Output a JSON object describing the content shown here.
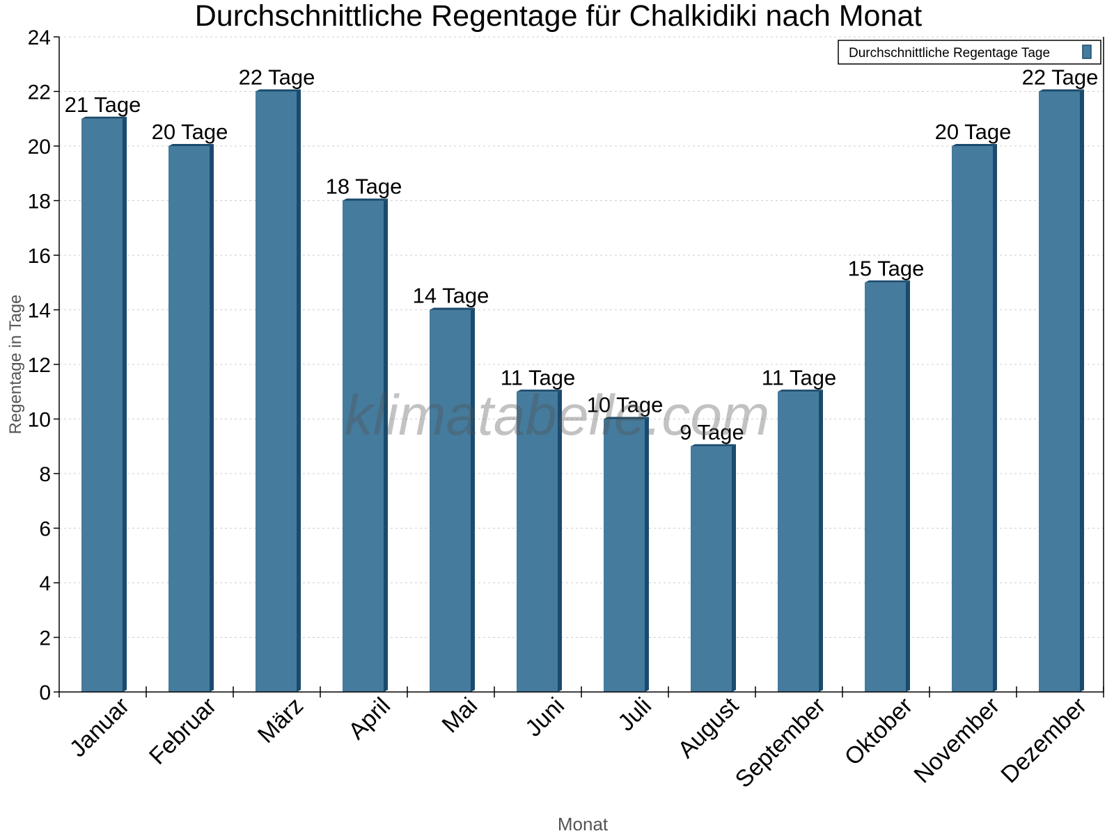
{
  "chart_data": {
    "type": "bar",
    "title": "Durchschnittliche Regentage für Chalkidiki nach Monat",
    "xlabel": "Monat",
    "ylabel": "Regentage in Tage",
    "categories": [
      "Januar",
      "Februar",
      "März",
      "April",
      "Mai",
      "Juni",
      "Juli",
      "August",
      "September",
      "Oktober",
      "November",
      "Dezember"
    ],
    "series": [
      {
        "name": "Durchschnittliche Regentage Tage",
        "values": [
          21,
          20,
          22,
          18,
          14,
          11,
          10,
          9,
          11,
          15,
          20,
          22
        ],
        "color": "#457b9d",
        "side_color": "#1a4b6e"
      }
    ],
    "data_labels": [
      "21 Tage",
      "20 Tage",
      "22 Tage",
      "18 Tage",
      "14 Tage",
      "11 Tage",
      "10 Tage",
      "9 Tage",
      "11 Tage",
      "15 Tage",
      "20 Tage",
      "22 Tage"
    ],
    "yticks": [
      "0",
      "2",
      "4",
      "6",
      "8",
      "10",
      "12",
      "14",
      "16",
      "18",
      "20",
      "22",
      "24"
    ],
    "ylim": [
      0,
      24
    ],
    "grid": true,
    "legend_position": "top-right",
    "watermark": "klimatabelle.com"
  }
}
